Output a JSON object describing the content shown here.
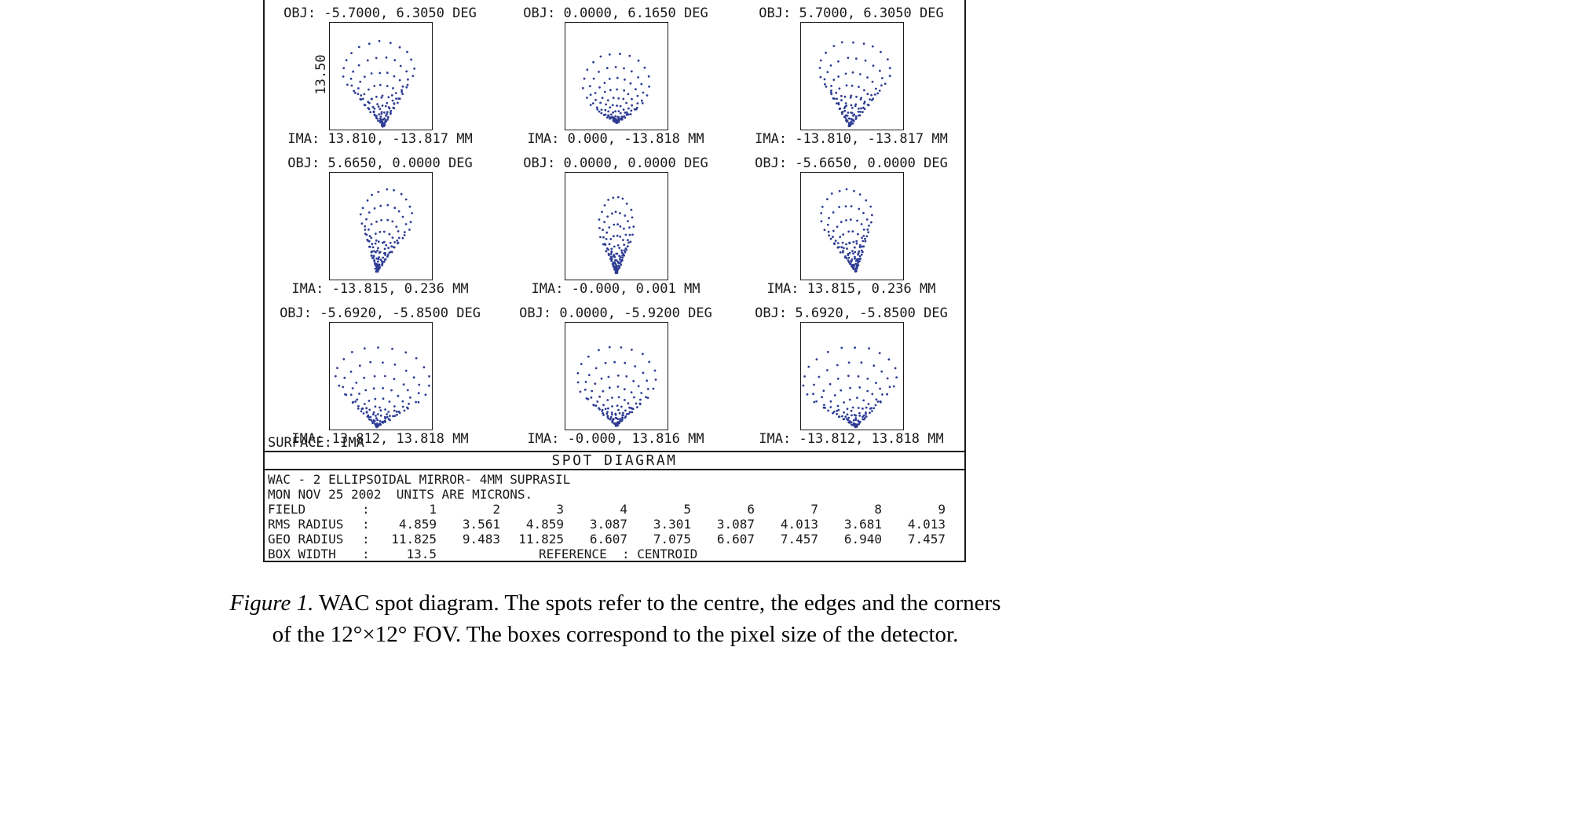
{
  "figure": {
    "scale_label": "13.50",
    "surface_label": "SURFACE: IMA",
    "title": "SPOT DIAGRAM",
    "info": {
      "line1": "WAC - 2 ELLIPSOIDAL MIRROR- 4MM SUPRASIL",
      "line2": "MON NOV 25 2002  UNITS ARE MICRONS.",
      "colon": ":",
      "rows": [
        {
          "label": "FIELD",
          "values": [
            "1",
            "2",
            "3",
            "4",
            "5",
            "6",
            "7",
            "8",
            "9"
          ]
        },
        {
          "label": "RMS RADIUS",
          "values": [
            "4.859",
            "3.561",
            "4.859",
            "3.087",
            "3.301",
            "3.087",
            "4.013",
            "3.681",
            "4.013"
          ]
        },
        {
          "label": "GEO RADIUS",
          "values": [
            "11.825",
            "9.483",
            "11.825",
            "6.607",
            "7.075",
            "6.607",
            "7.457",
            "6.940",
            "7.457"
          ]
        }
      ],
      "box_width_label": "BOX WIDTH",
      "box_width_value": "13.5",
      "reference_text": "REFERENCE  : CENTROID"
    }
  },
  "chart_data": {
    "type": "scatter",
    "title": "SPOT DIAGRAM",
    "units": "MICRONS",
    "box_width_microns": 13.5,
    "reference": "CENTROID",
    "panels": [
      {
        "field": 1,
        "obj_label": "OBJ: -5.7000, 6.3050 DEG",
        "ima_label": "IMA: 13.810, -13.817 MM",
        "obj_deg": [
          -5.7,
          6.305
        ],
        "ima_mm": [
          13.81,
          -13.817
        ],
        "rms_radius": 4.859,
        "geo_radius": 11.825,
        "pattern": {
          "s": 36,
          "cone": 2.0,
          "spread": 1.25,
          "rot": 5,
          "apex": [
            68,
            132
          ],
          "flip": false
        }
      },
      {
        "field": 2,
        "obj_label": "OBJ: 0.0000, 6.1650 DEG",
        "ima_label": "IMA: 0.000, -13.818 MM",
        "obj_deg": [
          0.0,
          6.165
        ],
        "ima_mm": [
          0.0,
          -13.818
        ],
        "rms_radius": 3.561,
        "geo_radius": 9.483,
        "pattern": {
          "s": 40,
          "cone": 1.2,
          "spread": 1.05,
          "rot": 0,
          "apex": [
            65,
            127
          ],
          "flip": false
        }
      },
      {
        "field": 3,
        "obj_label": "OBJ: 5.7000, 6.3050 DEG",
        "ima_label": "IMA: -13.810, -13.817 MM",
        "obj_deg": [
          5.7,
          6.305
        ],
        "ima_mm": [
          -13.81,
          -13.817
        ],
        "rms_radius": 4.859,
        "geo_radius": 11.825,
        "pattern": {
          "s": 36,
          "cone": 2.0,
          "spread": 1.25,
          "rot": -5,
          "apex": [
            62,
            132
          ],
          "flip": true
        }
      },
      {
        "field": 4,
        "obj_label": "OBJ: 5.6650, 0.0000 DEG",
        "ima_label": "IMA: -13.815, 0.236 MM",
        "obj_deg": [
          5.665,
          0.0
        ],
        "ima_mm": [
          -13.815,
          0.236
        ],
        "rms_radius": 3.087,
        "geo_radius": 6.607,
        "pattern": {
          "s": 34,
          "cone": 2.1,
          "spread": 0.95,
          "rot": -10,
          "apex": [
            60,
            126
          ],
          "flip": false
        }
      },
      {
        "field": 5,
        "obj_label": "OBJ: 0.0000, 0.0000 DEG",
        "ima_label": "IMA: -0.000, 0.001 MM",
        "obj_deg": [
          0.0,
          0.0
        ],
        "ima_mm": [
          0.0,
          0.001
        ],
        "rms_radius": 3.301,
        "geo_radius": 7.075,
        "pattern": {
          "s": 36,
          "cone": 1.7,
          "spread": 0.6,
          "rot": 0,
          "apex": [
            65,
            128
          ],
          "flip": false
        }
      },
      {
        "field": 6,
        "obj_label": "OBJ: -5.6650, 0.0000 DEG",
        "ima_label": "IMA: 13.815, 0.236 MM",
        "obj_deg": [
          -5.665,
          0.0
        ],
        "ima_mm": [
          13.815,
          0.236
        ],
        "rms_radius": 3.087,
        "geo_radius": 6.607,
        "pattern": {
          "s": 34,
          "cone": 2.1,
          "spread": 0.95,
          "rot": 10,
          "apex": [
            70,
            126
          ],
          "flip": true
        }
      },
      {
        "field": 7,
        "obj_label": "OBJ: -5.6920, -5.8500 DEG",
        "ima_label": "IMA: 13.812, 13.818 MM",
        "obj_deg": [
          -5.692,
          -5.85
        ],
        "ima_mm": [
          13.812,
          13.818
        ],
        "rms_radius": 4.013,
        "geo_radius": 7.457,
        "pattern": {
          "s": 40,
          "cone": 1.55,
          "spread": 1.5,
          "rot": -7,
          "apex": [
            60,
            133
          ],
          "flip": false
        }
      },
      {
        "field": 8,
        "obj_label": "OBJ: 0.0000, -5.9200 DEG",
        "ima_label": "IMA: -0.000, 13.816 MM",
        "obj_deg": [
          0.0,
          -5.92
        ],
        "ima_mm": [
          0.0,
          13.816
        ],
        "rms_radius": 3.681,
        "geo_radius": 6.94,
        "pattern": {
          "s": 40,
          "cone": 1.5,
          "spread": 1.25,
          "rot": 0,
          "apex": [
            65,
            131
          ],
          "flip": false
        }
      },
      {
        "field": 9,
        "obj_label": "OBJ: 5.6920, -5.8500 DEG",
        "ima_label": "IMA: -13.812, 13.818 MM",
        "obj_deg": [
          5.692,
          -5.85
        ],
        "ima_mm": [
          -13.812,
          13.818
        ],
        "rms_radius": 4.013,
        "geo_radius": 7.457,
        "pattern": {
          "s": 40,
          "cone": 1.55,
          "spread": 1.5,
          "rot": 7,
          "apex": [
            70,
            133
          ],
          "flip": true
        }
      }
    ]
  },
  "caption": {
    "figure_label": "Figure 1.",
    "line1_rest": " WAC spot diagram. The spots refer to the centre, the edges and the corners",
    "line2": "of the 12°×12° FOV. The boxes correspond to the pixel size of the detector."
  },
  "colors": {
    "spot": "#2e3d93",
    "frame": "#1a1a1a"
  }
}
